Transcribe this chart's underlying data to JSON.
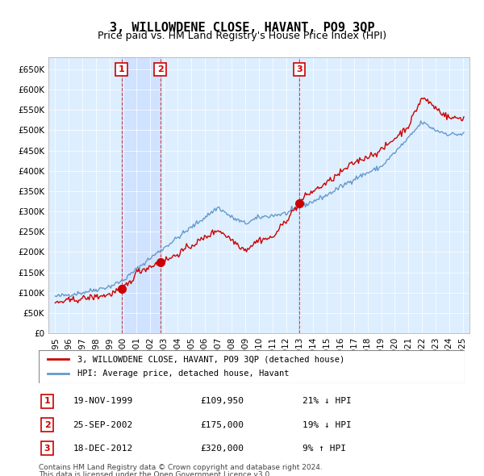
{
  "title": "3, WILLOWDENE CLOSE, HAVANT, PO9 3QP",
  "subtitle": "Price paid vs. HM Land Registry's House Price Index (HPI)",
  "legend_line1": "3, WILLOWDENE CLOSE, HAVANT, PO9 3QP (detached house)",
  "legend_line2": "HPI: Average price, detached house, Havant",
  "footnote1": "Contains HM Land Registry data © Crown copyright and database right 2024.",
  "footnote2": "This data is licensed under the Open Government Licence v3.0.",
  "transactions": [
    {
      "num": 1,
      "date": "19-NOV-1999",
      "price": 109950,
      "hpi_rel": "21% ↓ HPI",
      "year": 1999.88
    },
    {
      "num": 2,
      "date": "25-SEP-2002",
      "price": 175000,
      "hpi_rel": "19% ↓ HPI",
      "year": 2002.73
    },
    {
      "num": 3,
      "date": "18-DEC-2012",
      "price": 320000,
      "hpi_rel": "9% ↑ HPI",
      "year": 2012.96
    }
  ],
  "hpi_color": "#6699cc",
  "price_color": "#cc0000",
  "bg_color": "#ddeeff",
  "grid_color": "#aabbcc",
  "highlight_color": "#cce0ff",
  "ylim": [
    0,
    680000
  ],
  "yticks": [
    0,
    50000,
    100000,
    150000,
    200000,
    250000,
    300000,
    350000,
    400000,
    450000,
    500000,
    550000,
    600000,
    650000
  ],
  "xlim_start": 1994.5,
  "xlim_end": 2025.5
}
